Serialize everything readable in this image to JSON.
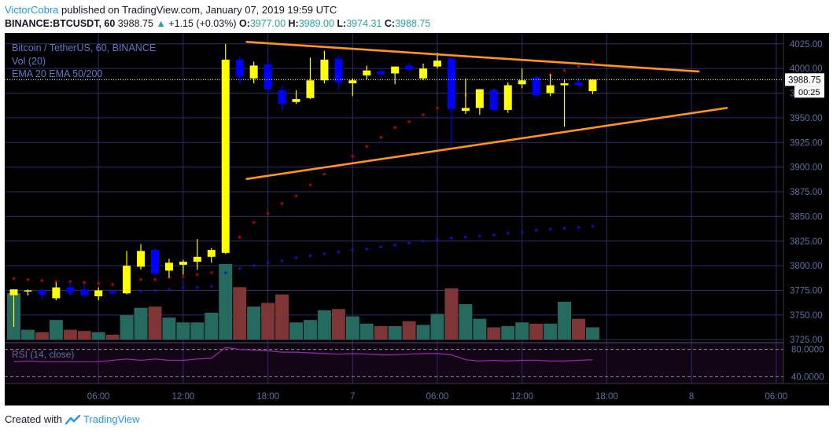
{
  "header": {
    "author": "VictorCobra",
    "published_text": "published on TradingView.com, January 07, 2019 19:59 UTC",
    "symbol": "BINANCE:BTCUSDT, 60",
    "last": "3988.75",
    "change": "+1.15 (+0.03%)",
    "o_label": "O:",
    "o": "3977.00",
    "h_label": "H:",
    "h": "3989.00",
    "l_label": "L:",
    "l": "3974.31",
    "c_label": "C:",
    "c": "3988.75"
  },
  "legend": {
    "title": "Bitcoin / TetherUS, 60, BINANCE",
    "vol": "Vol (20)",
    "ema": "EMA 20 EMA 50/200",
    "rsi": "RSI (14, close)"
  },
  "price_axis": {
    "ticks": [
      "4025.00",
      "4000.00",
      "3975.00",
      "3950.00",
      "3925.00",
      "3900.00",
      "3875.00",
      "3850.00",
      "3825.00",
      "3800.00",
      "3775.00",
      "3750.00",
      "3725.00"
    ],
    "tick_values": [
      4025,
      4000,
      3975,
      3950,
      3925,
      3900,
      3875,
      3850,
      3825,
      3800,
      3775,
      3750,
      3725
    ],
    "current_price_label": "3988.75",
    "countdown_label": "00:25",
    "range": [
      3722,
      4036
    ]
  },
  "rsi_axis": {
    "ticks": [
      "80.0000",
      "40.0000"
    ],
    "tick_values": [
      80,
      40
    ],
    "range": [
      30,
      90
    ]
  },
  "time_axis": {
    "labels": [
      "06:00",
      "12:00",
      "18:00",
      "7",
      "06:00",
      "12:00",
      "18:00",
      "8",
      "06:00"
    ],
    "label_slots": [
      6,
      12,
      18,
      24,
      30,
      36,
      42,
      48,
      54
    ]
  },
  "footer": {
    "created_with": "Created with",
    "brand": "TradingView"
  },
  "colors": {
    "background": "#000000",
    "grid": "#2c2c6e",
    "up": "#ffff00",
    "down": "#0000ff",
    "vol_up": "#26695f",
    "vol_down": "#7d3535",
    "trendline": "#ff9320",
    "ema20": "#c00000",
    "ema50": "#1010cc",
    "rsi": "#9c27b0",
    "axis_text": "#5f6fa0"
  },
  "chart_data": {
    "type": "candlestick",
    "interval": "60",
    "candles": [
      {
        "o": 3770,
        "h": 3775,
        "l": 3738,
        "c": 3776
      },
      {
        "o": 3775,
        "h": 3776,
        "l": 3770,
        "c": 3775
      },
      {
        "o": 3775,
        "h": 3777,
        "l": 3765,
        "c": 3771
      },
      {
        "o": 3767,
        "h": 3783,
        "l": 3765,
        "c": 3778
      },
      {
        "o": 3778,
        "h": 3784,
        "l": 3772,
        "c": 3773
      },
      {
        "o": 3776,
        "h": 3782,
        "l": 3768,
        "c": 3770
      },
      {
        "o": 3769,
        "h": 3778,
        "l": 3765,
        "c": 3775
      },
      {
        "o": 3774,
        "h": 3776,
        "l": 3771,
        "c": 3772
      },
      {
        "o": 3772,
        "h": 3815,
        "l": 3771,
        "c": 3800
      },
      {
        "o": 3799,
        "h": 3822,
        "l": 3796,
        "c": 3815
      },
      {
        "o": 3816,
        "h": 3818,
        "l": 3790,
        "c": 3792
      },
      {
        "o": 3795,
        "h": 3807,
        "l": 3788,
        "c": 3803
      },
      {
        "o": 3801,
        "h": 3806,
        "l": 3791,
        "c": 3804
      },
      {
        "o": 3804,
        "h": 3827,
        "l": 3796,
        "c": 3809
      },
      {
        "o": 3809,
        "h": 3818,
        "l": 3803,
        "c": 3816
      },
      {
        "o": 3813,
        "h": 4025,
        "l": 3812,
        "c": 4009
      },
      {
        "o": 4009,
        "h": 4012,
        "l": 3985,
        "c": 3992
      },
      {
        "o": 3990,
        "h": 4007,
        "l": 3985,
        "c": 4003
      },
      {
        "o": 4004,
        "h": 4009,
        "l": 3974,
        "c": 3979
      },
      {
        "o": 3978,
        "h": 3983,
        "l": 3957,
        "c": 3964
      },
      {
        "o": 3966,
        "h": 3978,
        "l": 3964,
        "c": 3969
      },
      {
        "o": 3970,
        "h": 4011,
        "l": 3969,
        "c": 3988
      },
      {
        "o": 3988,
        "h": 4018,
        "l": 3985,
        "c": 4009
      },
      {
        "o": 4010,
        "h": 4014,
        "l": 3978,
        "c": 3986
      },
      {
        "o": 3985,
        "h": 3990,
        "l": 3972,
        "c": 3988
      },
      {
        "o": 3993,
        "h": 4003,
        "l": 3989,
        "c": 3998
      },
      {
        "o": 3997,
        "h": 4001,
        "l": 3993,
        "c": 3994
      },
      {
        "o": 3995,
        "h": 4002,
        "l": 3984,
        "c": 4002
      },
      {
        "o": 4003,
        "h": 4006,
        "l": 3996,
        "c": 3999
      },
      {
        "o": 3990,
        "h": 4005,
        "l": 3988,
        "c": 4000
      },
      {
        "o": 4002,
        "h": 4016,
        "l": 4000,
        "c": 4008
      },
      {
        "o": 4010,
        "h": 4011,
        "l": 3921,
        "c": 3959
      },
      {
        "o": 3957,
        "h": 3990,
        "l": 3954,
        "c": 3960
      },
      {
        "o": 3960,
        "h": 3979,
        "l": 3953,
        "c": 3979
      },
      {
        "o": 3978,
        "h": 3980,
        "l": 3957,
        "c": 3958
      },
      {
        "o": 3958,
        "h": 3986,
        "l": 3955,
        "c": 3983
      },
      {
        "o": 3984,
        "h": 4000,
        "l": 3980,
        "c": 3988
      },
      {
        "o": 3991,
        "h": 3993,
        "l": 3970,
        "c": 3973
      },
      {
        "o": 3975,
        "h": 3994,
        "l": 3972,
        "c": 3983
      },
      {
        "o": 3983,
        "h": 3989,
        "l": 3941,
        "c": 3985
      },
      {
        "o": 3986,
        "h": 3991,
        "l": 3982,
        "c": 3983
      },
      {
        "o": 3977,
        "h": 3989,
        "l": 3974,
        "c": 3988.75
      }
    ],
    "volume": [
      38,
      8,
      6,
      16,
      8,
      7,
      6,
      4,
      20,
      26,
      27,
      18,
      14,
      14,
      22,
      62,
      43,
      27,
      30,
      37,
      14,
      16,
      24,
      25,
      19,
      13,
      11,
      11,
      15,
      12,
      21,
      42,
      29,
      17,
      10,
      11,
      14,
      13,
      13,
      31,
      17,
      10
    ],
    "ema20": [
      3787,
      3786,
      3785,
      3784,
      3784,
      3783,
      3782,
      3781,
      3783,
      3786,
      3786,
      3788,
      3789,
      3791,
      3793,
      3814,
      3829,
      3844,
      3853,
      3863,
      3871,
      3882,
      3893,
      3902,
      3911,
      3921,
      3930,
      3940,
      3946,
      3953,
      3960,
      3966,
      3973,
      3976,
      3978,
      3983,
      3986,
      3990,
      3994,
      3998,
      4002,
      4007
    ],
    "ema50": [
      3770,
      3771,
      3771,
      3772,
      3772,
      3773,
      3773,
      3773,
      3774,
      3774,
      3775,
      3776,
      3778,
      3778,
      3779,
      3793,
      3797,
      3800,
      3803,
      3805,
      3808,
      3810,
      3812,
      3814,
      3816,
      3817,
      3819,
      3821,
      3823,
      3825,
      3827,
      3828,
      3829,
      3830,
      3831,
      3833,
      3834,
      3836,
      3837,
      3838,
      3839,
      3840
    ],
    "rsi": [
      62,
      63,
      62,
      62,
      62,
      62,
      62,
      64,
      66,
      64,
      66,
      64,
      64,
      66,
      67,
      83,
      80,
      79,
      78,
      76,
      76,
      75,
      74,
      73,
      74,
      73,
      72,
      72,
      73,
      74,
      74,
      72,
      65,
      63,
      64,
      63,
      64,
      64,
      63,
      63,
      64,
      65
    ],
    "trendlines": [
      {
        "name": "descending",
        "from": [
          16.5,
          4027
        ],
        "to": [
          48.5,
          3997
        ]
      },
      {
        "name": "ascending",
        "from": [
          16.5,
          3888
        ],
        "to": [
          50.5,
          3960
        ]
      }
    ]
  }
}
